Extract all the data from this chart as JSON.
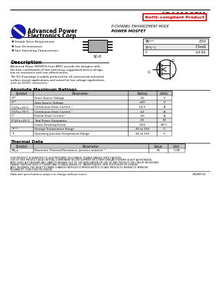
{
  "title": "AP4409GEM",
  "rohs_text": "RoHS-compliant Product",
  "subtitle1": "P-CHANNEL ENHANCEMENT MODE",
  "subtitle2": "POWER MOSFET",
  "features": [
    "Simple Drive Requirement",
    "Low On-resistance",
    "Fast Switching Characteristic"
  ],
  "package": "SO-8",
  "spec_syms": [
    "BVᴰᴰᴰ",
    "Rᴰᴰ(ᵒⁿ)",
    "Iᴰ"
  ],
  "spec_vals": [
    "-35V",
    "7.5mΩ",
    "-14.5A"
  ],
  "desc_title": "Description",
  "desc_lines1": [
    "Advanced Power MOSFETs from APEC provide the designer with",
    "the best combination of fast switching, ruggedized device design,",
    "low on-resistance and cost-effectiveness."
  ],
  "desc_lines2": [
    "The SO-8 package is widely preferred for all commercial-industrial",
    "surface mount applications and suited for low voltage applications",
    "such as DC/DC converters."
  ],
  "abs_title": "Absolute Maximum Ratings",
  "abs_headers": [
    "Symbol",
    "Parameter",
    "Rating",
    "Units"
  ],
  "abs_rows": [
    [
      "Vᴰᴰ",
      "Drain-Source Voltage",
      "-35",
      "V"
    ],
    [
      "Vᴳᴰ",
      "Gate-Source Voltage",
      "±20",
      "V"
    ],
    [
      "Iᴰ@Tᴀ=25°C",
      "Continuous Drain Current ¹",
      "-14.5",
      "A"
    ],
    [
      "Iᴰ@Tᴀ=75°C",
      "Continuous Drain Current ¹",
      "-12",
      "A"
    ],
    [
      "Iᴰᴹ",
      "Pulsed Drain Current ¹",
      "-50",
      "A"
    ],
    [
      "Pᴰ@Tᴀ=25°C",
      "Total Power Dissipation",
      "2.5",
      "W"
    ],
    [
      "",
      "Linear Derating Factor",
      "0.02",
      "W/°C"
    ],
    [
      "Tᴰᵂᴳ",
      "Storage Temperature Range",
      "-55 to 150",
      "°C"
    ],
    [
      "Tᴶ",
      "Operating Junction Temperature Range",
      "-55 to 150",
      "°C"
    ]
  ],
  "thermal_title": "Thermal Data",
  "thermal_headers": [
    "Symbol",
    "Parameter",
    "Value",
    "Unit"
  ],
  "thermal_rows": [
    [
      "Rθj-a",
      "Maximum Thermal Resistance, Junction-ambient ¹¹",
      "50",
      "°C/W"
    ]
  ],
  "footer_lines": [
    "THIS PRODUCT IS SENSITIVE TO ELECTROSTATIC DISCHARGE. PLEASE HANDLE WITH CAUTION.",
    "USE OF THIS PRODUCT AS A CRITICAL COMPONENT IN LIFE SUPPORT OR OTHER SIMILAR SYSTEMS IS NOT AUTHORIZED.",
    "APEC DOES NOT ASSUME ANY LIABILITY ARISING OUT OF THE APPLICATION OR USE OF ANY PRODUCT OR CIRCUIT DESCRIBED",
    "HEREIN. NEITHER DOES IT CONVEY ANY LICENSE UNDER ITS  PATENT RIGHTS, NOR THE RIGHTS OF OTHERS.",
    "APEC RESERVES THE RIGHT TO MAKE CHANGES WITHOUT FURTHER NOTICE TO ANY PRODUCTS HEREIN TO IMPROVE",
    "RELIABILITY, FUNCTION OR DESIGN."
  ],
  "footer_italic": "Data and specifications subject to change without notice",
  "doc_number": "20080514",
  "bg_color": "#ffffff",
  "table_header_bg": "#c8c8c8",
  "table_alt_bg": "#e8e8e8",
  "blue_color": "#1a1aaa",
  "red_border": "#cc0000"
}
